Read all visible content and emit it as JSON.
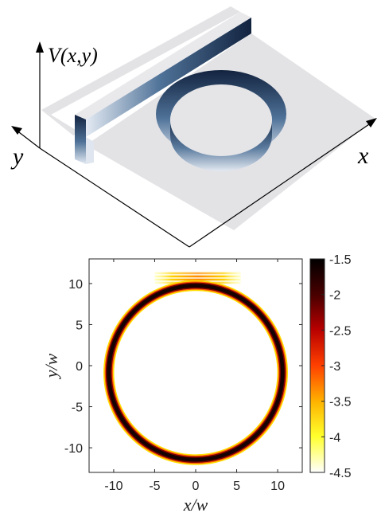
{
  "potential_panel": {
    "axis_labels": {
      "v": "V(x,y)",
      "x": "x",
      "y": "y"
    },
    "colors": {
      "plateau": "#e3e3e6",
      "wall_dark": "#12233f",
      "wall_light": "#dfe7f1",
      "axis": "#000000"
    }
  },
  "chart_data": {
    "type": "heatmap",
    "xlabel": "x/w",
    "ylabel": "y/w",
    "xlim": [
      -13,
      13
    ],
    "ylim": [
      -13,
      13
    ],
    "x_ticks": [
      -10,
      -5,
      0,
      5,
      10
    ],
    "y_ticks": [
      10,
      5,
      0,
      -5,
      -10
    ],
    "ring": {
      "center": [
        0,
        -0.85
      ],
      "radius": 10.6,
      "width": 0.5
    },
    "waveguide_band": {
      "x_range": [
        -5,
        5.5
      ],
      "y": 10.8,
      "fringes": 4
    },
    "colorbar": {
      "ticks": [
        -1.5,
        -2,
        -2.5,
        -3,
        -3.5,
        -4,
        -4.5
      ],
      "range": [
        -4.5,
        -1.5
      ],
      "colormap": [
        "#ffffff",
        "#ffff2c",
        "#ffb400",
        "#ff4000",
        "#b80000",
        "#4a0000",
        "#000000"
      ]
    }
  }
}
